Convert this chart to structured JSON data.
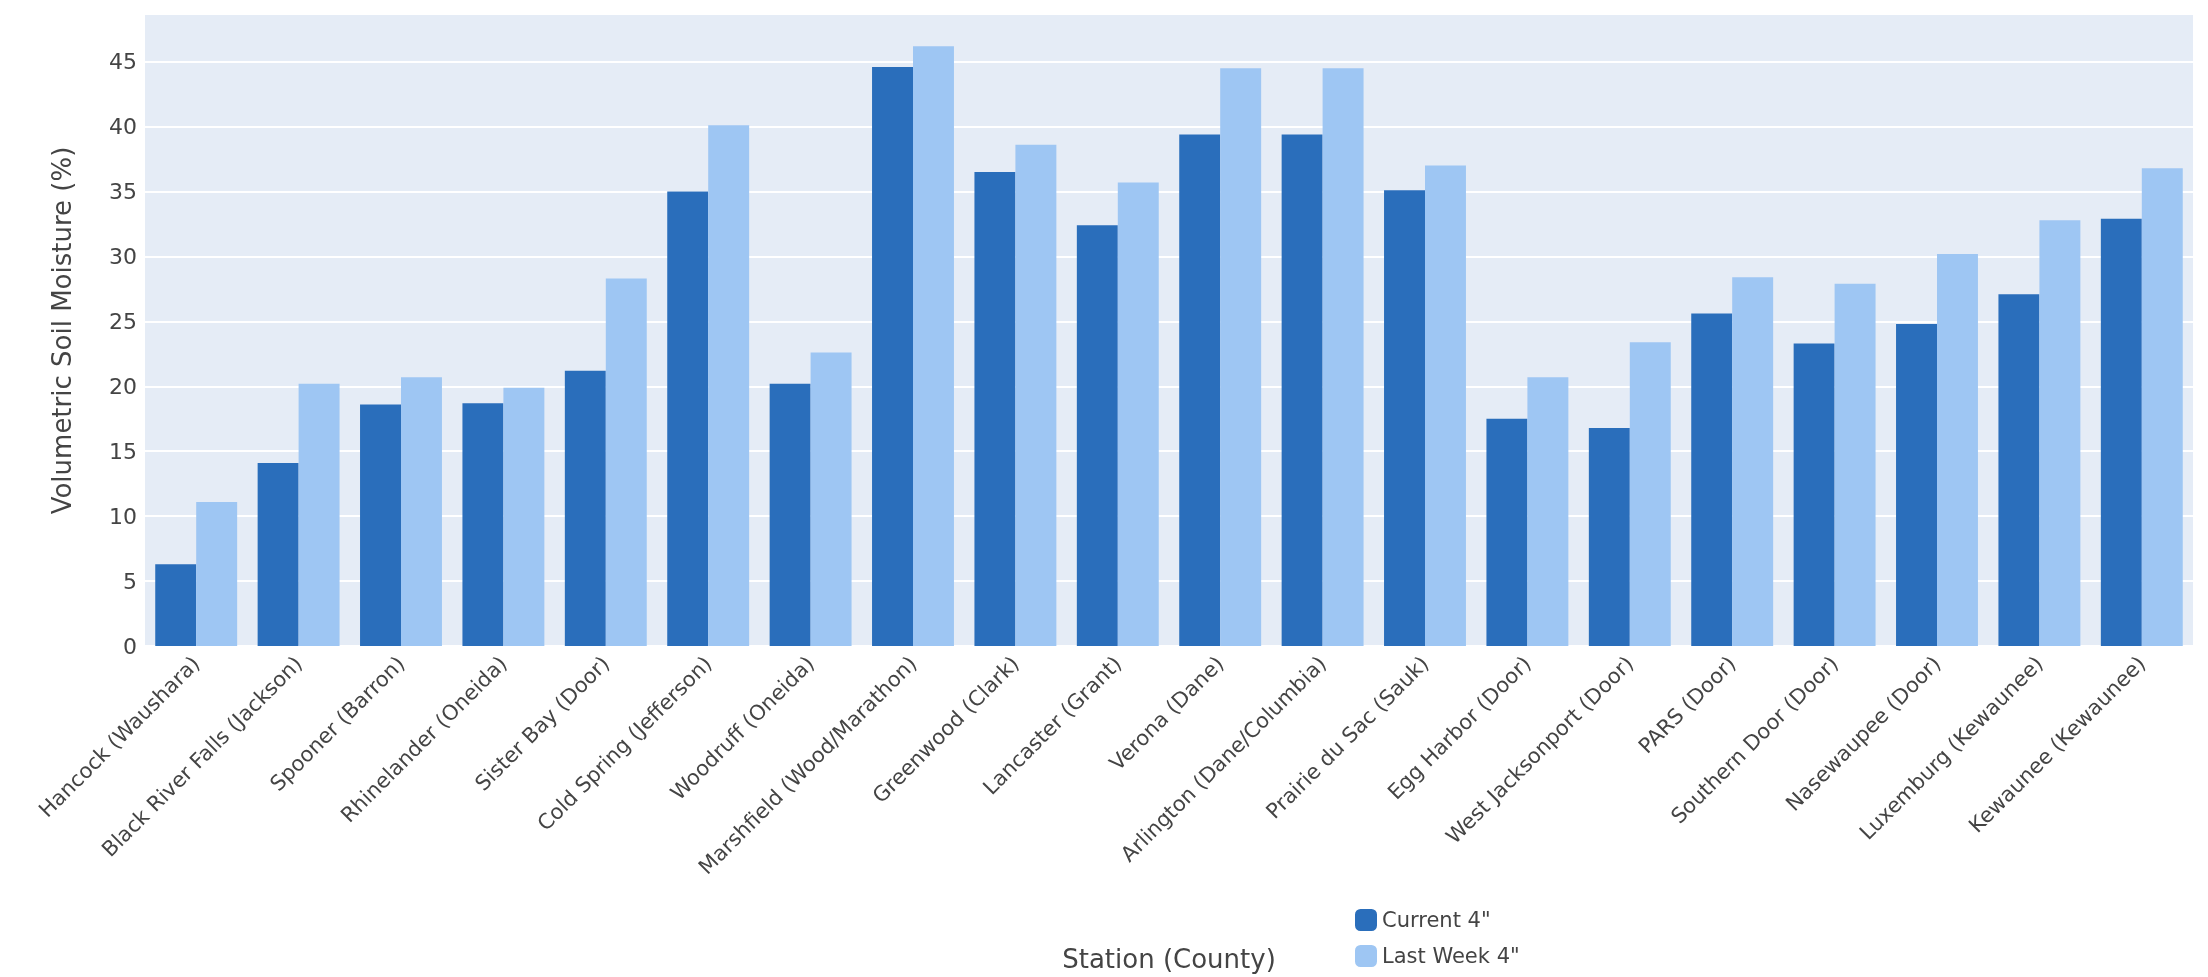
{
  "chart_data": {
    "type": "bar",
    "xlabel": "Station (County)",
    "ylabel": "Volumetric Soil Moisture (%)",
    "categories": [
      "Hancock (Waushara)",
      "Black River Falls (Jackson)",
      "Spooner (Barron)",
      "Rhinelander (Oneida)",
      "Sister Bay (Door)",
      "Cold Spring (Jefferson)",
      "Woodruff (Oneida)",
      "Marshfield (Wood/Marathon)",
      "Greenwood (Clark)",
      "Lancaster (Grant)",
      "Verona (Dane)",
      "Arlington (Dane/Columbia)",
      "Prairie du Sac (Sauk)",
      "Egg Harbor (Door)",
      "West Jacksonport (Door)",
      "PARS (Door)",
      "Southern Door (Door)",
      "Nasewaupee (Door)",
      "Luxemburg (Kewaunee)",
      "Kewaunee (Kewaunee)"
    ],
    "series": [
      {
        "name": "Current 4\"",
        "color": "#2a6ebb",
        "values": [
          6.3,
          14.1,
          18.6,
          18.7,
          21.2,
          35.0,
          20.2,
          44.6,
          36.5,
          32.4,
          39.4,
          39.4,
          35.1,
          17.5,
          16.8,
          25.6,
          23.3,
          24.8,
          27.1,
          32.9
        ]
      },
      {
        "name": "Last Week 4\"",
        "color": "#9ec6f3",
        "values": [
          11.1,
          20.2,
          20.7,
          19.9,
          28.3,
          40.1,
          22.6,
          46.2,
          38.6,
          35.7,
          44.5,
          44.5,
          37.0,
          20.7,
          23.4,
          28.4,
          27.9,
          30.2,
          32.8,
          36.8
        ]
      }
    ],
    "ylim": [
      0,
      48.6
    ],
    "yticks": [
      0,
      5,
      10,
      15,
      20,
      25,
      30,
      35,
      40,
      45
    ],
    "grid": "y",
    "legend": "bottom right"
  }
}
